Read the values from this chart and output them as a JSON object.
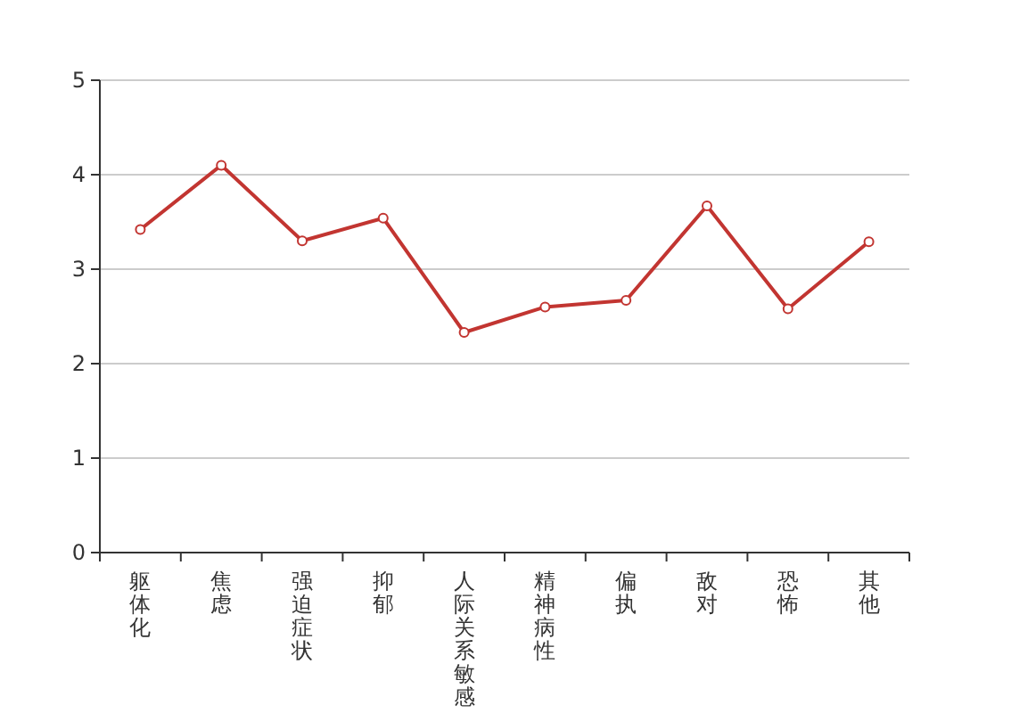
{
  "chart_data": {
    "type": "line",
    "categories": [
      "躯体化",
      "焦虑",
      "强迫症状",
      "抑郁",
      "人际关系敏感",
      "精神病性",
      "偏执",
      "敌对",
      "恐怖",
      "其他"
    ],
    "series": [
      {
        "color": "#c23531",
        "values": [
          3.42,
          4.1,
          3.3,
          3.54,
          2.33,
          2.6,
          2.67,
          3.67,
          2.58,
          3.29
        ]
      }
    ],
    "ylim": [
      0,
      5
    ],
    "yticks": [
      0,
      1,
      2,
      3,
      4,
      5
    ],
    "grid": "y",
    "marker": "circle"
  }
}
